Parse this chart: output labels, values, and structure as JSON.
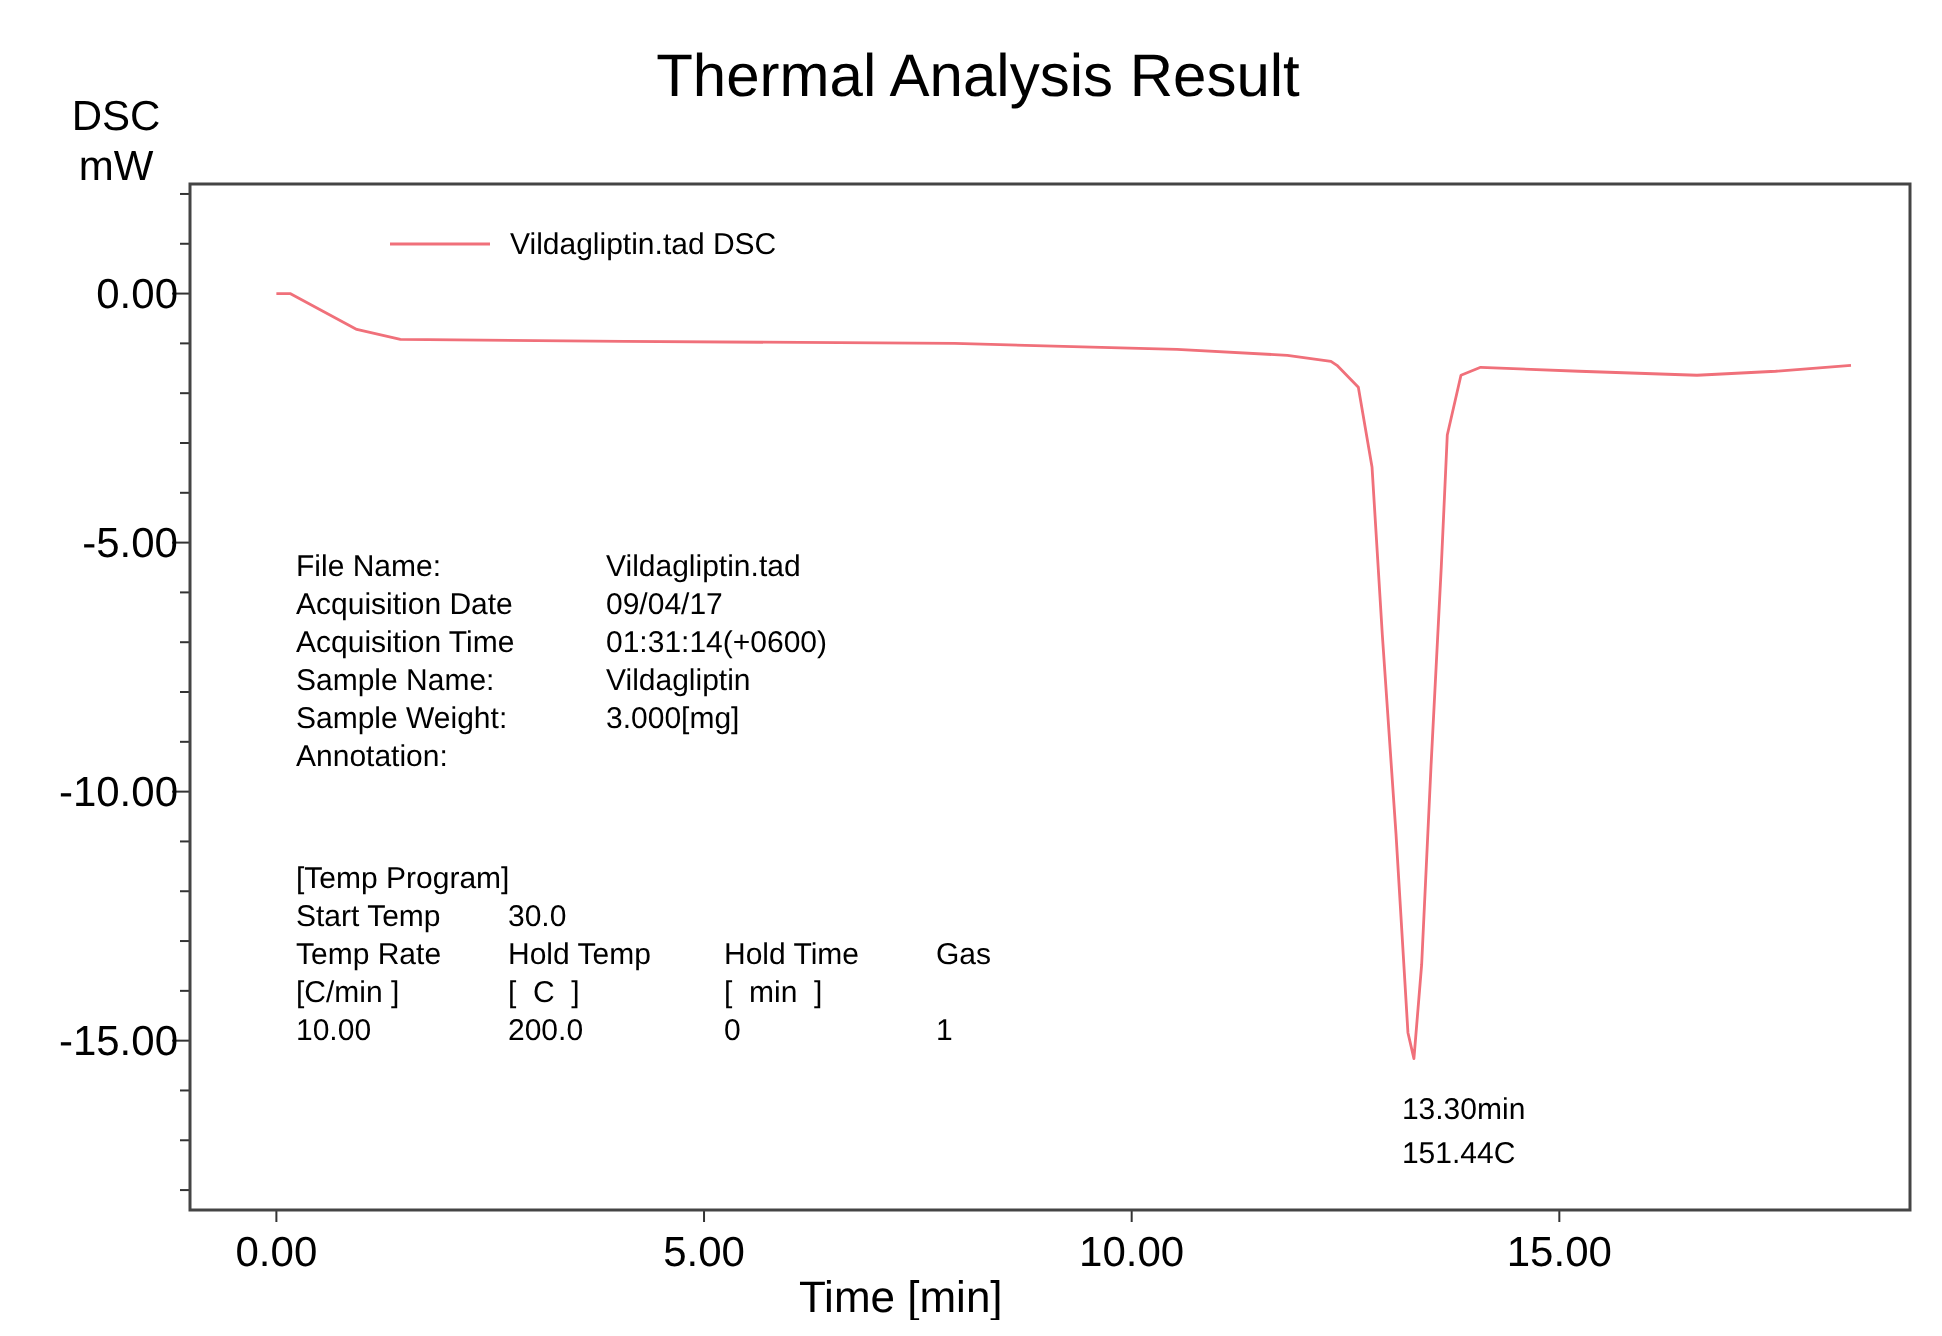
{
  "chart_data": {
    "type": "line",
    "title": "Thermal Analysis Result",
    "xlabel": "Time  [min]",
    "ylabel": "DSC\nmW",
    "xlim": [
      -1.01,
      19.1
    ],
    "ylim": [
      -18.4,
      2.2
    ],
    "xticks": [
      {
        "value": 0,
        "label": "0.00"
      },
      {
        "value": 5,
        "label": "5.00"
      },
      {
        "value": 10,
        "label": "10.00"
      },
      {
        "value": 15,
        "label": "15.00"
      }
    ],
    "yticks": [
      {
        "value": 2,
        "label": null
      },
      {
        "value": 1,
        "label": null
      },
      {
        "value": 0,
        "label": "0.00"
      },
      {
        "value": -1,
        "label": null
      },
      {
        "value": -2,
        "label": null
      },
      {
        "value": -3,
        "label": null
      },
      {
        "value": -4,
        "label": null
      },
      {
        "value": -5,
        "label": "-5.00"
      },
      {
        "value": -6,
        "label": null
      },
      {
        "value": -7,
        "label": null
      },
      {
        "value": -8,
        "label": null
      },
      {
        "value": -9,
        "label": null
      },
      {
        "value": -10,
        "label": "-10.00"
      },
      {
        "value": -11,
        "label": null
      },
      {
        "value": -12,
        "label": null
      },
      {
        "value": -13,
        "label": null
      },
      {
        "value": -14,
        "label": null
      },
      {
        "value": -15,
        "label": "-15.00"
      },
      {
        "value": -16,
        "label": null
      },
      {
        "value": -17,
        "label": null
      },
      {
        "value": -18,
        "label": null
      }
    ],
    "grid": false,
    "legend": "top left",
    "marker": "none",
    "line_style": "solid",
    "series": [
      {
        "name": "Vildagliptin.tad  DSC",
        "color": "#f0707a",
        "x": [
          0,
          0.16,
          0.55,
          0.94,
          1.45,
          4.06,
          7.93,
          10.53,
          11.82,
          12.33,
          12.4,
          12.65,
          12.81,
          12.93,
          13.09,
          13.23,
          13.3,
          13.39,
          13.5,
          13.62,
          13.69,
          13.85,
          14.08,
          15.23,
          16.61,
          17.53,
          18.41
        ],
        "values": [
          0,
          0,
          -0.36,
          -0.72,
          -0.92,
          -0.96,
          -1.0,
          -1.12,
          -1.24,
          -1.36,
          -1.44,
          -1.88,
          -3.48,
          -6.84,
          -10.84,
          -14.84,
          -15.36,
          -13.48,
          -9.48,
          -5.48,
          -2.84,
          -1.64,
          -1.48,
          -1.56,
          -1.64,
          -1.56,
          -1.44
        ]
      }
    ],
    "annotations": [
      "File Name:\tVildagliptin.tad\nAcquisition Date\t09/04/17\nAcquisition Time\t01:31:14(+0600)\nSample Name:\tVildagliptin\nSample Weight:\t3.000[mg]\nAnnotation:",
      "[Temp Program]\nStart Temp\t30.0\nTemp Rate\tHold Temp\tHold Time\tGas\n[C/min ]\t[  C  ]\t[  min  ]\n10.00\t200.0\t0\t1",
      {
        "text": "13.30min\n151.44C",
        "x": 13.3,
        "y": -15.36
      }
    ]
  }
}
